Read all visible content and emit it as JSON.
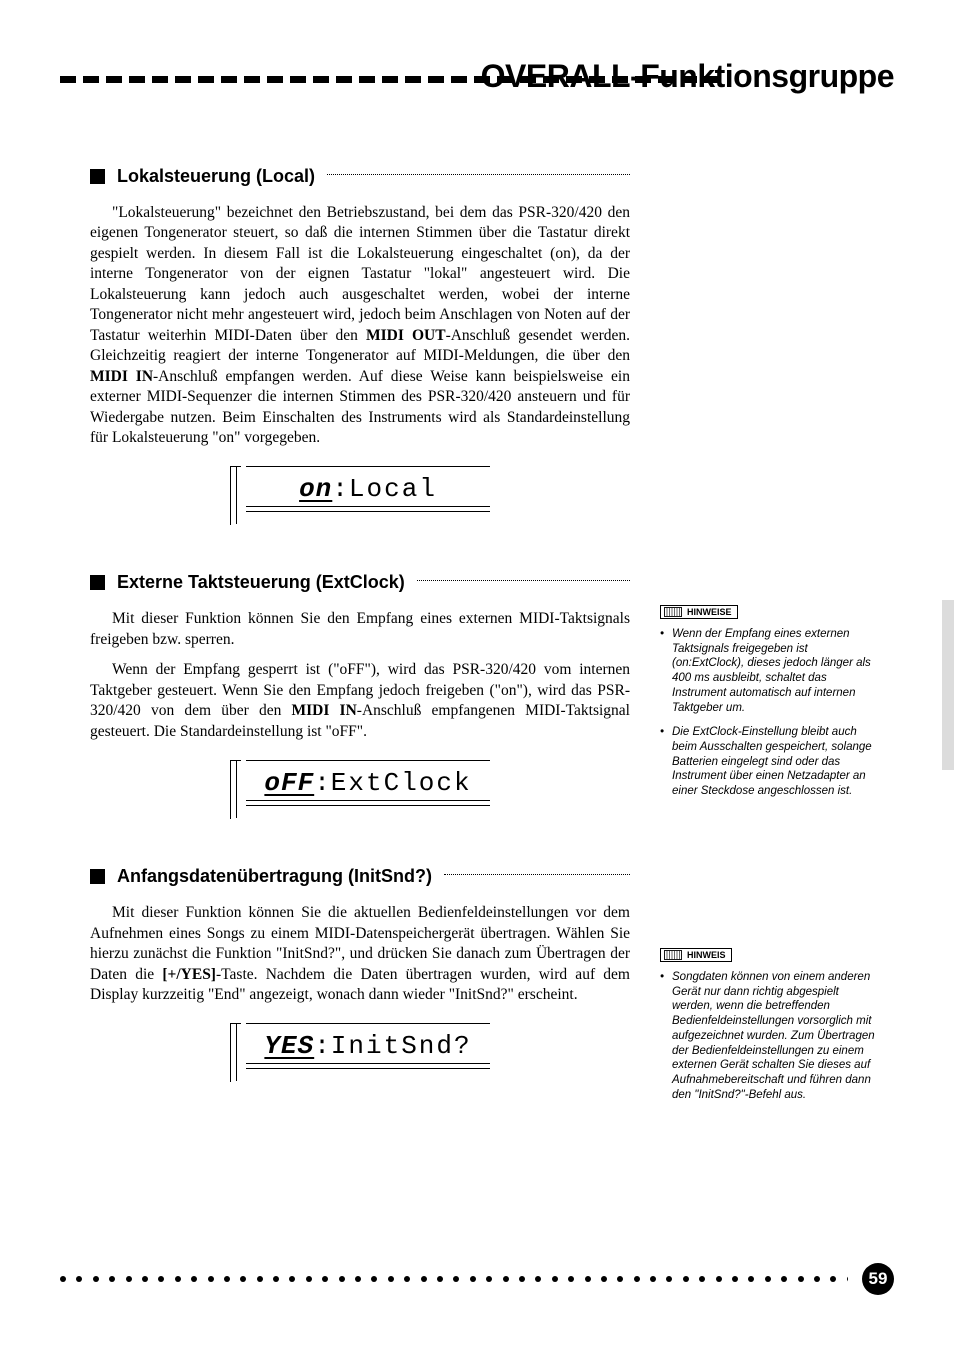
{
  "header": {
    "title": "OVERALL-Funktionsgruppe",
    "dash_count": 29,
    "dash_color": "#000000"
  },
  "sections": {
    "local": {
      "heading": "Lokalsteuerung (Local)",
      "para1_a": "\"Lokalsteuerung\" bezeichnet den Betriebszustand, bei dem das PSR-320/420 den eigenen Tongenerator steuert, so daß die internen Stimmen über die Tastatur direkt gespielt werden. In diesem Fall ist die Lokalsteuerung eingeschaltet (on), da der interne Tongenerator von der eignen Tastatur \"lokal\" angesteuert wird. Die Lokalsteuerung kann jedoch auch ausgeschaltet werden, wobei der interne Tongenerator nicht mehr angesteuert wird, jedoch beim Anschlagen von Noten auf der Tastatur weiterhin MIDI-Daten über den ",
      "bold1": "MIDI OUT",
      "para1_b": "-Anschluß gesendet werden. Gleichzeitig reagiert der interne Tongenerator auf MIDI-Meldungen, die über den ",
      "bold2": "MIDI IN",
      "para1_c": "-Anschluß empfangen werden. Auf diese Weise kann beispielsweise ein externer MIDI-Sequenzer die internen Stimmen des PSR-320/420 ansteuern und für Wiedergabe nutzen. Beim Einschalten des Instruments wird als Standardeinstellung für Lokalsteuerung \"on\" vorgegeben.",
      "lcd_value": "on",
      "lcd_name": "Local"
    },
    "extclock": {
      "heading": "Externe Taktsteuerung (ExtClock)",
      "para1": "Mit dieser Funktion können Sie den Empfang eines externen MIDI-Taktsignals freigeben bzw. sperren.",
      "para2_a": "Wenn der Empfang gesperrt ist (\"oFF\"), wird das PSR-320/420 vom internen Taktgeber gesteuert. Wenn Sie den Empfang jedoch freigeben (\"on\"), wird das PSR-320/420 von dem über den ",
      "bold1": "MIDI IN",
      "para2_b": "-Anschluß empfangenen MIDI-Taktsignal gesteuert. Die Standardeinstellung ist \"oFF\".",
      "lcd_value": "oFF",
      "lcd_name": "ExtClock"
    },
    "initsnd": {
      "heading": "Anfangsdatenübertragung (InitSnd?)",
      "para1_a": "Mit dieser Funktion können Sie die aktuellen Bedienfeldeinstellungen vor dem Aufnehmen eines Songs zu einem MIDI-Datenspeichergerät übertragen. Wählen Sie hierzu zunächst die Funktion \"InitSnd?\", und drücken Sie danach zum Übertragen der Daten die ",
      "bold1": "[+/YES]",
      "para1_b": "-Taste. Nachdem die Daten übertragen wurden, wird auf dem Display kurzzeitig \"End\" angezeigt, wonach dann wieder \"InitSnd?\" erscheint.",
      "lcd_value": "YES",
      "lcd_name": "InitSnd?"
    }
  },
  "notes": {
    "badge_plural": "HINWEISE",
    "badge_singular": "HINWEIS",
    "extclock": [
      "Wenn der Empfang eines externen Taktsignals freigegeben ist (on:ExtClock), dieses jedoch länger als 400 ms ausbleibt, schaltet das Instrument automatisch auf internen Taktgeber um.",
      "Die ExtClock-Einstellung bleibt auch beim Ausschalten gespeichert, solange Batterien eingelegt sind oder das Instrument über einen Netzadapter an einer Steckdose angeschlossen ist."
    ],
    "initsnd": [
      "Songdaten können von einem anderen Gerät nur dann richtig abgespielt werden, wenn die betreffenden Bedienfeldeinstellungen vorsorglich mit aufgezeichnet wurden. Zum Übertragen der Bedienfeldeinstellungen zu einem externen Gerät schalten Sie dieses auf Aufnahmebereitschaft und führen dann den \"InitSnd?\"-Befehl aus."
    ]
  },
  "footer": {
    "page_number": "59",
    "dot_count": 49,
    "dot_color": "#000000"
  },
  "colors": {
    "text": "#000000",
    "background": "#ffffff",
    "thumb_tab": "#dcdcdc"
  },
  "typography": {
    "title_fontsize_pt": 24,
    "heading_fontsize_pt": 14,
    "body_fontsize_pt": 11,
    "note_fontsize_pt": 8,
    "lcd_fontsize_pt": 20,
    "body_font": "Times",
    "heading_font": "Arial",
    "lcd_font": "Courier"
  }
}
